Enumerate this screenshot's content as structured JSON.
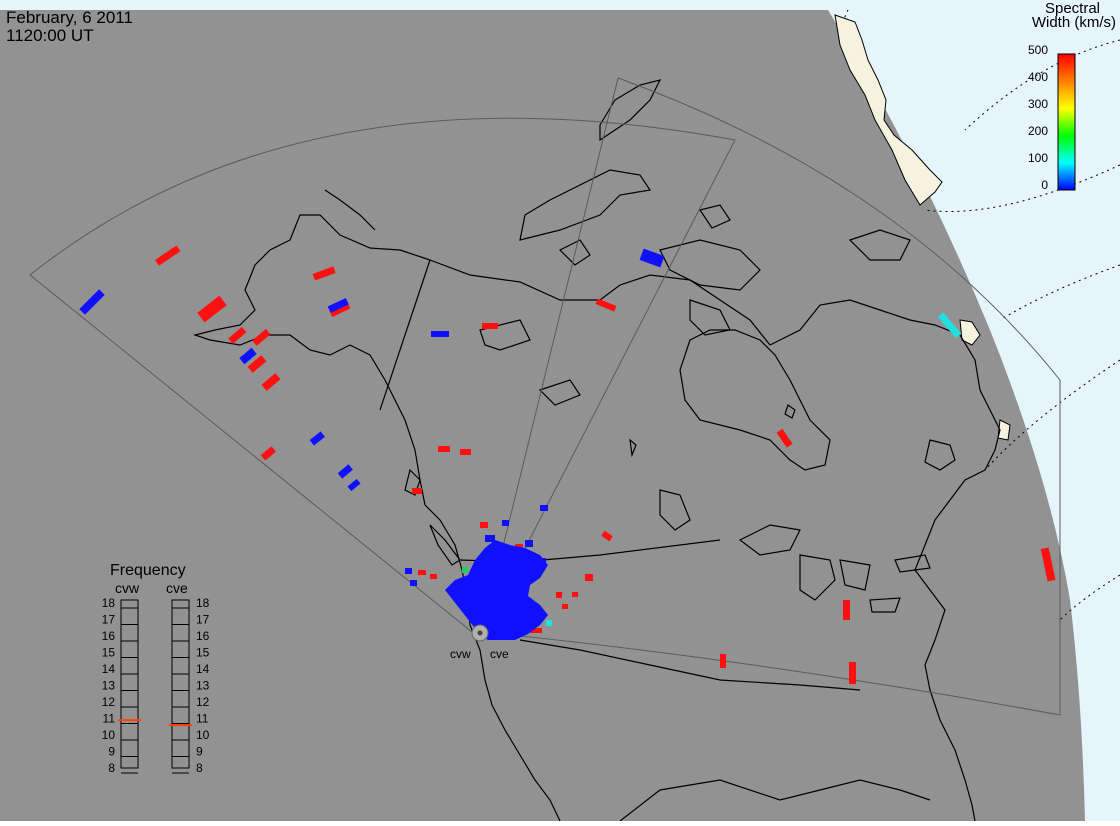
{
  "header": {
    "date": "February, 6 2011",
    "time": "1120:00 UT"
  },
  "colors": {
    "night_side": "#929292",
    "day_side": "#e6f4fc",
    "coast": "#000000",
    "fov_outline": "#5a5a5a",
    "dotted_grid": "#000000",
    "low_width": "#1010ff",
    "high_width": "#ff1010",
    "mid_width": "#20e0e0"
  },
  "colorbar": {
    "title_line1": "Spectral",
    "title_line2": "Width (km/s)",
    "ticks": [
      "500",
      "400",
      "300",
      "200",
      "100",
      "0"
    ],
    "stops": [
      "#0000ff",
      "#00ffff",
      "#00ff00",
      "#ffff00",
      "#ff8000",
      "#ff0000"
    ]
  },
  "frequency": {
    "title": "Frequency",
    "radars": [
      {
        "name": "cvw",
        "frequency_mhz": 10.9
      },
      {
        "name": "cve",
        "frequency_mhz": 10.6
      }
    ],
    "scale": [
      "18",
      "17",
      "16",
      "15",
      "14",
      "13",
      "12",
      "11",
      "10",
      "9",
      "8"
    ],
    "min": 8,
    "max": 18,
    "marker_color": "#ff4000"
  },
  "site_labels": {
    "west": "cvw",
    "east": "cve"
  }
}
